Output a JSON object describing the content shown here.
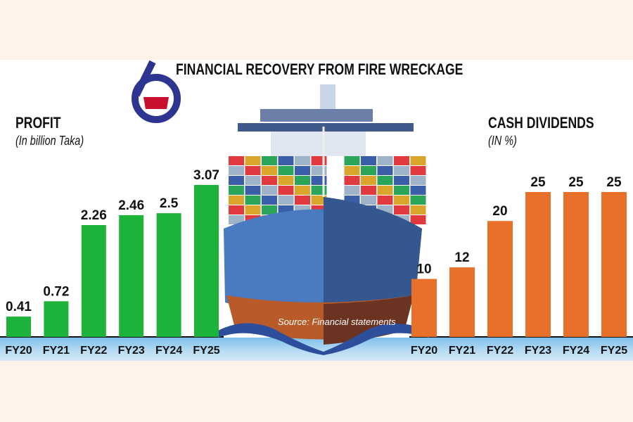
{
  "title": "FINANCIAL RECOVERY FROM FIRE WRECKAGE",
  "source": "Source: Financial statements",
  "logo_text": "6",
  "chart_data": [
    {
      "type": "bar",
      "title": "PROFIT",
      "subtitle": "(In billion Taka)",
      "categories": [
        "FY20",
        "FY21",
        "FY22",
        "FY23",
        "FY24",
        "FY25"
      ],
      "values": [
        0.41,
        0.72,
        2.26,
        2.46,
        2.5,
        3.07
      ],
      "labels": [
        "0.41",
        "0.72",
        "2.26",
        "2.46",
        "2.5",
        "3.07"
      ],
      "color": "#1db33b",
      "ylim": [
        0,
        3.07
      ]
    },
    {
      "type": "bar",
      "title": "CASH DIVIDENDS",
      "subtitle": "(IN %)",
      "categories": [
        "FY20",
        "FY21",
        "FY22",
        "FY23",
        "FY24",
        "FY25"
      ],
      "values": [
        10,
        12,
        20,
        25,
        25,
        25
      ],
      "labels": [
        "10",
        "12",
        "20",
        "25",
        "25",
        "25"
      ],
      "color": "#e8702a",
      "ylim": [
        0,
        25
      ]
    }
  ]
}
